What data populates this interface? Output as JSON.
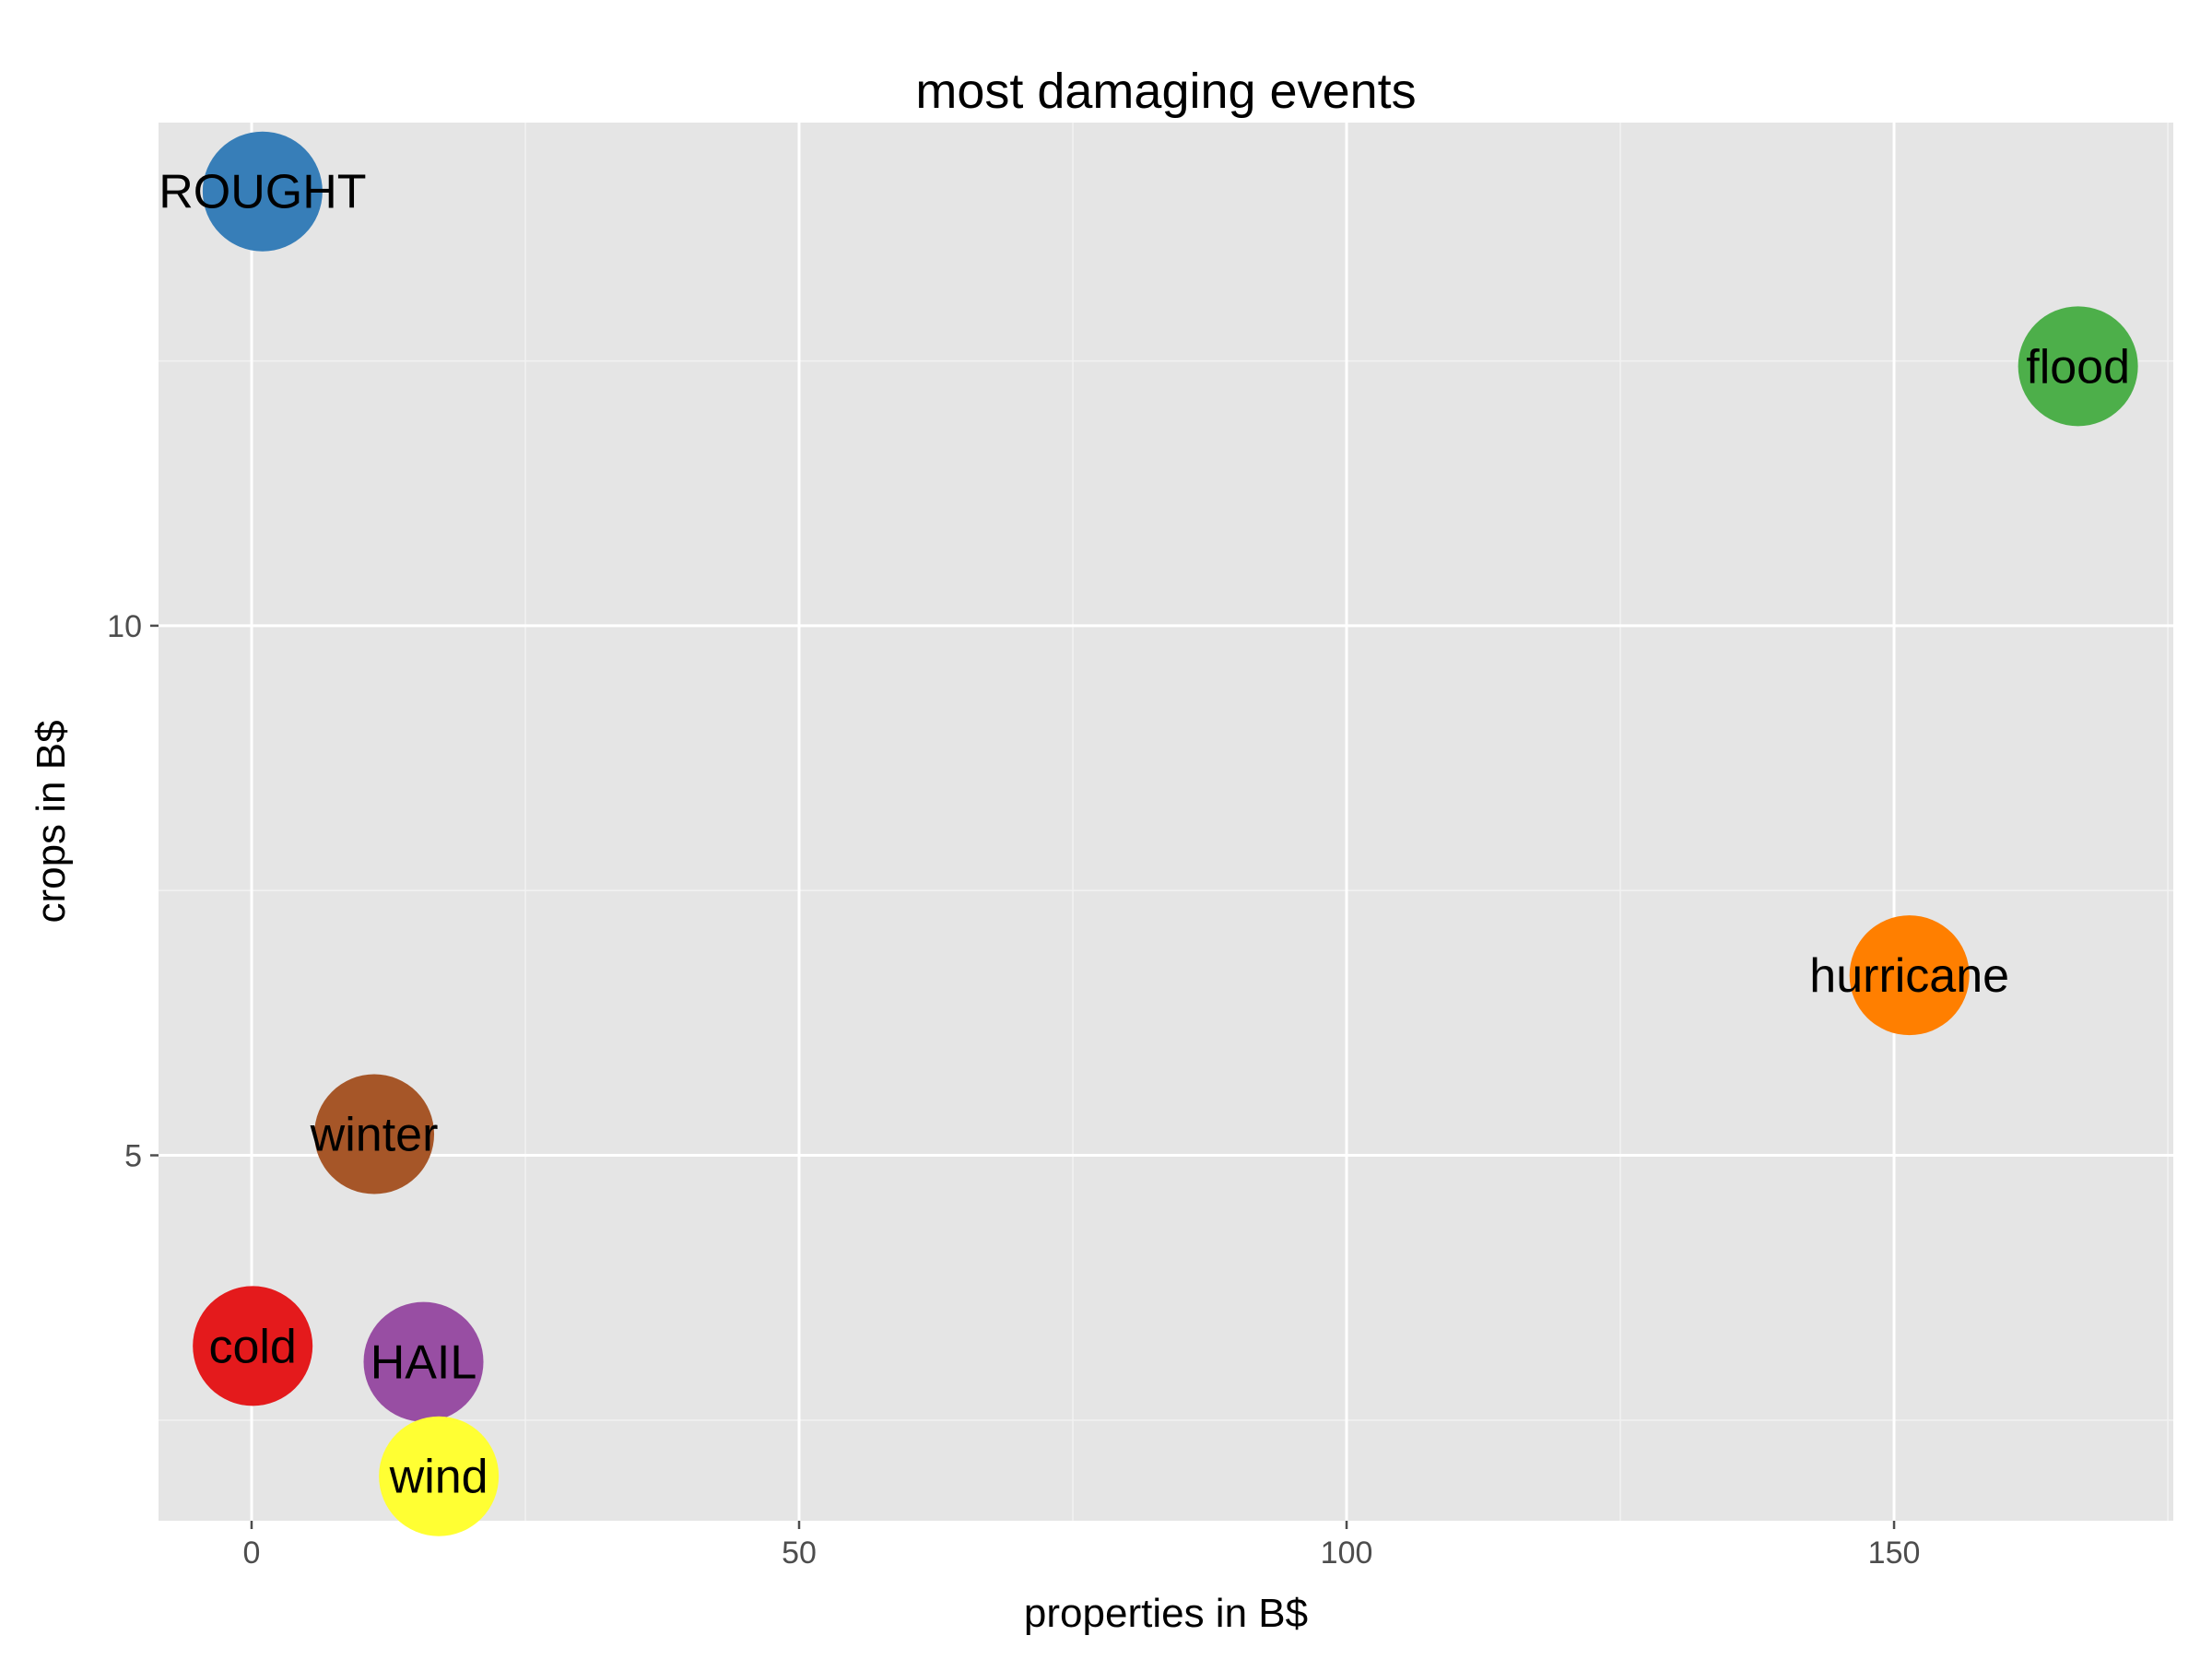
{
  "chart_data": {
    "type": "scatter",
    "title": "most damaging  events",
    "xlabel": "properties in B$",
    "ylabel": "crops in B$",
    "xlim": [
      -8.5,
      175.5
    ],
    "ylim": [
      1.55,
      14.75
    ],
    "x_ticks": [
      0,
      50,
      100,
      150
    ],
    "y_ticks": [
      5,
      10
    ],
    "x_tick_labels": [
      "0",
      "50",
      "100",
      "150"
    ],
    "y_tick_labels": [
      "5",
      "10"
    ],
    "grid": true,
    "legend": "none",
    "points": [
      {
        "label": "ROUGHT",
        "x": 1.0,
        "y": 14.1,
        "color": "#377EB8"
      },
      {
        "label": "flood",
        "x": 166.8,
        "y": 12.45,
        "color": "#4DAF4A"
      },
      {
        "label": "hurricane",
        "x": 151.4,
        "y": 6.7,
        "color": "#FF7F00"
      },
      {
        "label": "winter",
        "x": 11.2,
        "y": 5.2,
        "color": "#A65628"
      },
      {
        "label": "cold",
        "x": 0.1,
        "y": 3.2,
        "color": "#E41A1C"
      },
      {
        "label": "HAIL",
        "x": 15.7,
        "y": 3.05,
        "color": "#984EA3"
      },
      {
        "label": "wind",
        "x": 17.1,
        "y": 1.97,
        "color": "#FFFF33"
      }
    ]
  },
  "colors": {
    "panel_background": "#E5E5E5",
    "grid_major": "#FFFFFF",
    "grid_minor": "#F2F2F2",
    "tick_text": "#4D4D4D"
  }
}
